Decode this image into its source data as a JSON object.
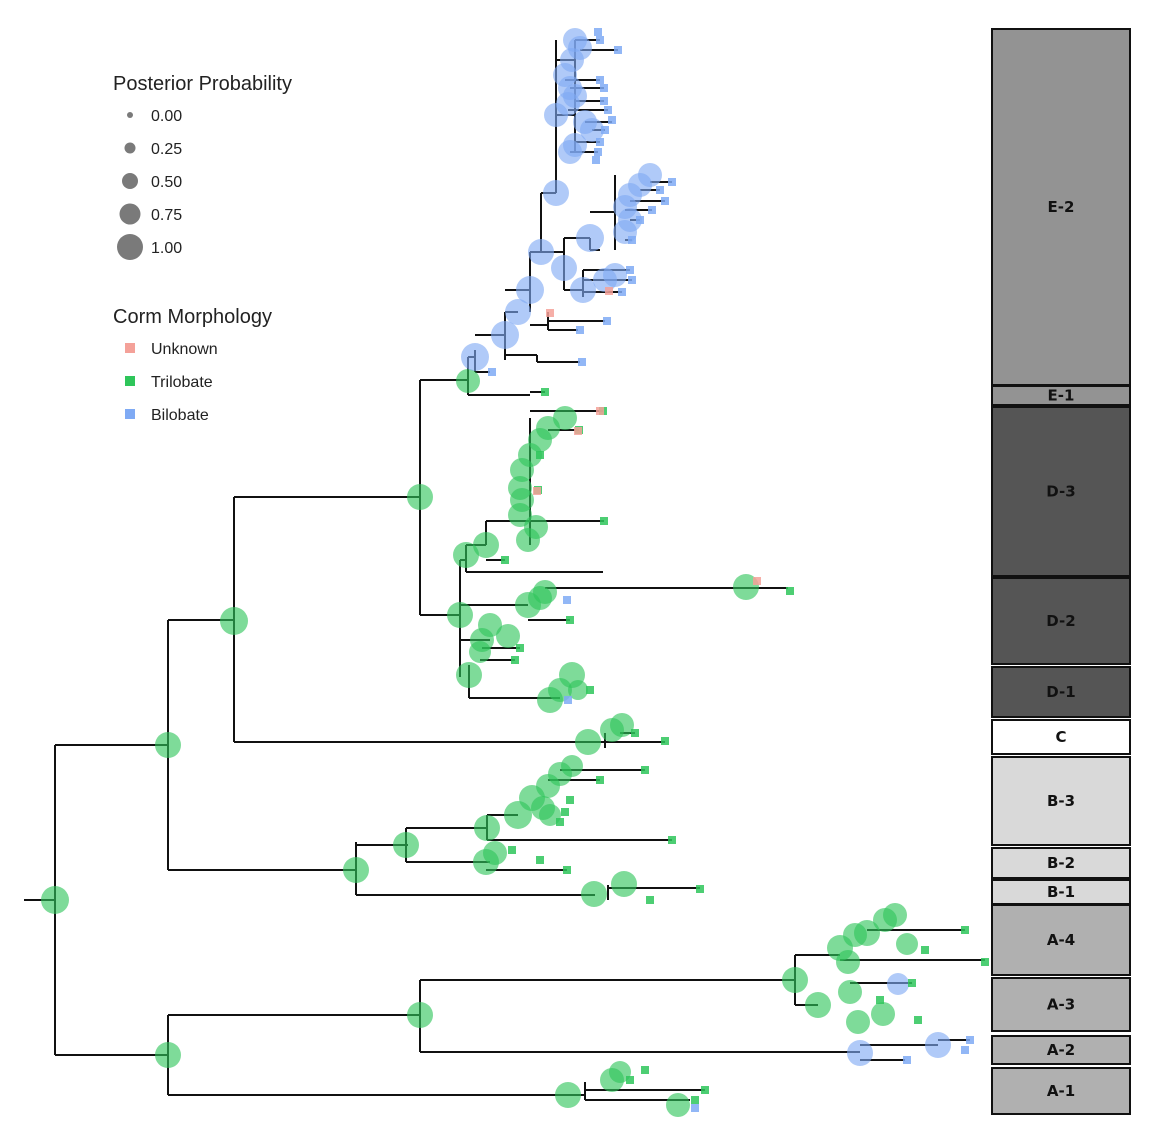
{
  "legend": {
    "size_title": "Posterior Probability",
    "size_items": [
      {
        "label": "0.00",
        "value": 0.0
      },
      {
        "label": "0.25",
        "value": 0.25
      },
      {
        "label": "0.50",
        "value": 0.5
      },
      {
        "label": "0.75",
        "value": 0.75
      },
      {
        "label": "1.00",
        "value": 1.0
      }
    ],
    "color_title": "Corm Morphology",
    "color_items": [
      {
        "label": "Unknown",
        "color": "#f4a199"
      },
      {
        "label": "Trilobate",
        "color": "#2ec55a"
      },
      {
        "label": "Bilobate",
        "color": "#7faaf4"
      }
    ]
  },
  "clades": [
    {
      "label": "E-2",
      "fill": "#939393",
      "text": "#111111"
    },
    {
      "label": "E-1",
      "fill": "#939393",
      "text": "#111111"
    },
    {
      "label": "D-3",
      "fill": "#555555",
      "text": "#111111"
    },
    {
      "label": "D-2",
      "fill": "#555555",
      "text": "#111111"
    },
    {
      "label": "D-1",
      "fill": "#555555",
      "text": "#111111"
    },
    {
      "label": "C",
      "fill": "#ffffff",
      "text": "#111111"
    },
    {
      "label": "B-3",
      "fill": "#d9d9d9",
      "text": "#111111"
    },
    {
      "label": "B-2",
      "fill": "#d9d9d9",
      "text": "#111111"
    },
    {
      "label": "B-1",
      "fill": "#d9d9d9",
      "text": "#111111"
    },
    {
      "label": "A-4",
      "fill": "#b0b0b0",
      "text": "#111111"
    },
    {
      "label": "A-3",
      "fill": "#b0b0b0",
      "text": "#111111"
    },
    {
      "label": "A-2",
      "fill": "#b0b0b0",
      "text": "#111111"
    },
    {
      "label": "A-1",
      "fill": "#b0b0b0",
      "text": "#111111"
    }
  ]
}
